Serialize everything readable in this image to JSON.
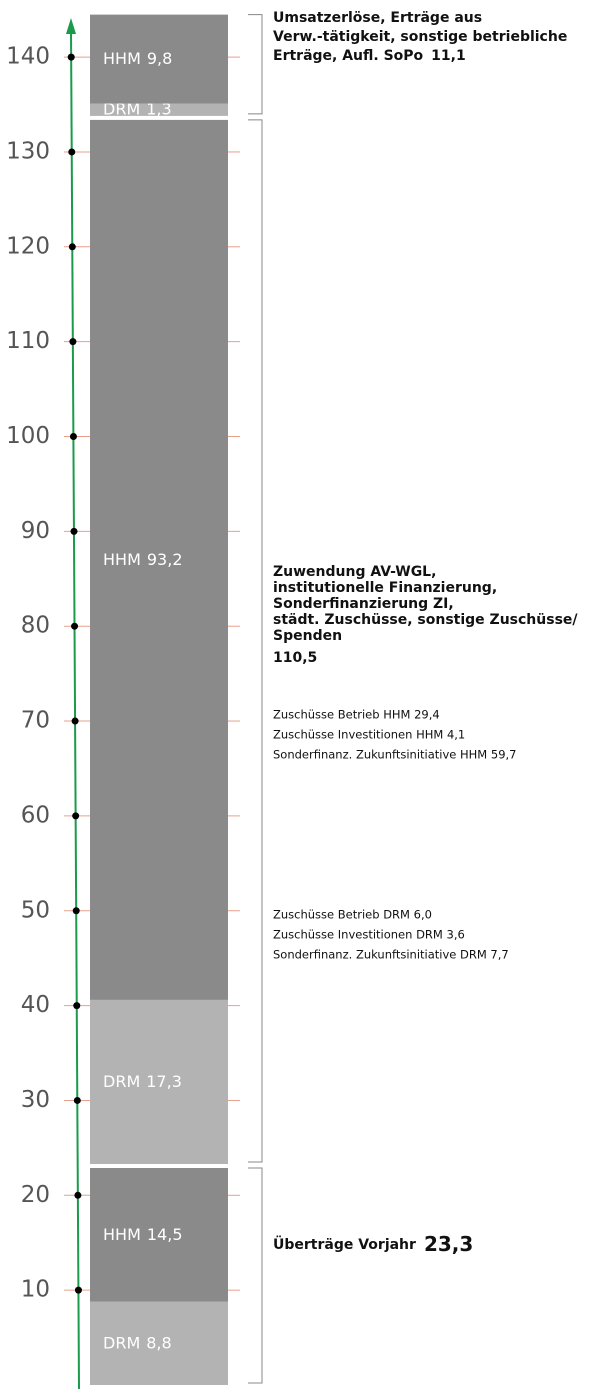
{
  "chart_data": {
    "type": "stacked_bar",
    "ylim": [
      0,
      145
    ],
    "yticks": [
      10,
      20,
      30,
      40,
      50,
      60,
      70,
      80,
      90,
      100,
      110,
      120,
      130,
      140
    ],
    "axis_color": "#1a9a4a",
    "tick_color": "#e8a08a",
    "groups": [
      {
        "label_lines": [
          "Überträge Vorjahr"
        ],
        "total": 23.3,
        "total_label": "23,3",
        "segments": [
          {
            "name": "DRM",
            "value": 8.8,
            "value_label": "8,8",
            "color": "#b3b3b3"
          },
          {
            "name": "HHM",
            "value": 14.5,
            "value_label": "14,5",
            "color": "#8a8a8a"
          }
        ]
      },
      {
        "label_lines": [
          "Zuwendung AV-WGL,",
          "institutionelle Finanzierung,",
          "Sonderfinanzierung ZI,",
          "städt. Zuschüsse, sonstige Zuschüsse/",
          "Spenden"
        ],
        "total": 110.5,
        "total_label": "110,5",
        "details": [
          [
            "Zuschüsse Betrieb HHM 29,4",
            "Zuschüsse Investitionen HHM 4,1",
            "Sonderfinanz. Zukunftsinitiative HHM 59,7"
          ],
          [
            "Zuschüsse Betrieb DRM 6,0",
            "Zuschüsse Investitionen  DRM 3,6",
            "Sonderfinanz. Zukunftsinitiative DRM 7,7"
          ]
        ],
        "segments": [
          {
            "name": "DRM",
            "value": 17.3,
            "value_label": "17,3",
            "color": "#b3b3b3"
          },
          {
            "name": "HHM",
            "value": 93.2,
            "value_label": "93,2",
            "color": "#8a8a8a"
          }
        ]
      },
      {
        "label_lines": [
          "Umsatzerlöse, Erträge aus",
          "Verw.-tätigkeit, sonstige betriebliche",
          "Erträge, Aufl. SoPo"
        ],
        "total": 11.1,
        "total_label": "11,1",
        "segments": [
          {
            "name": "DRM",
            "value": 1.3,
            "value_label": "1,3",
            "color": "#b3b3b3"
          },
          {
            "name": "HHM",
            "value": 9.8,
            "value_label": "9,8",
            "color": "#8a8a8a"
          }
        ]
      }
    ]
  }
}
